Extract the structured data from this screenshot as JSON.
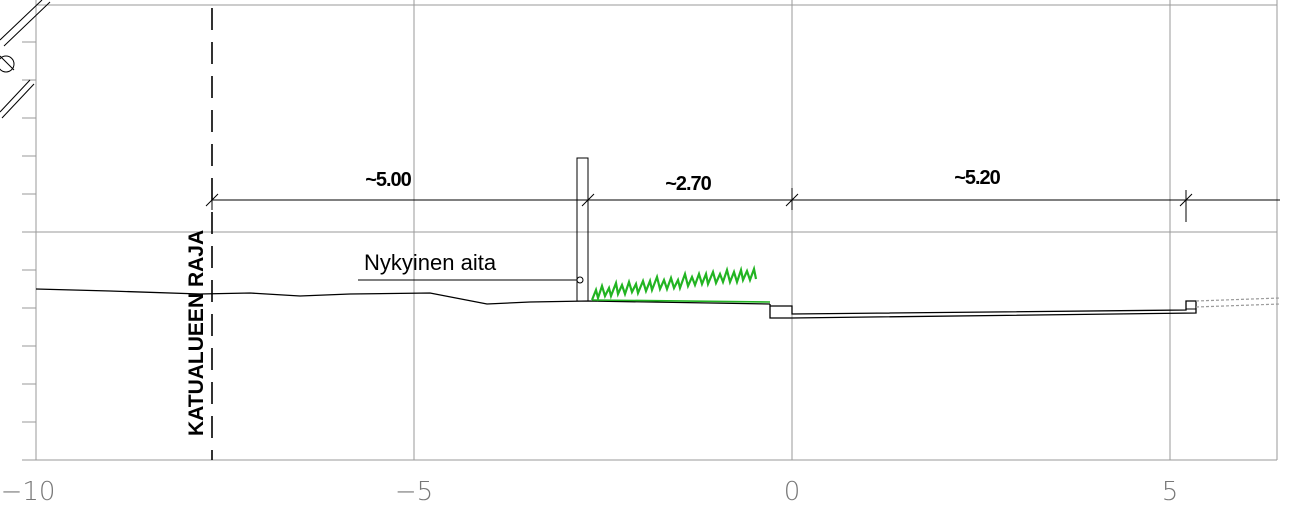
{
  "axis": {
    "tick_labels": [
      "−10",
      "−5",
      "0",
      "5"
    ]
  },
  "dimensions": {
    "left": "~5.00",
    "middle": "~2.70",
    "right": "~5.20"
  },
  "labels": {
    "boundary": "KATUALUEEN RAJA",
    "fence": "Nykyinen aita"
  },
  "colors": {
    "grass": "#22b422",
    "grid": "#9a9a9a",
    "ink": "#000000"
  }
}
